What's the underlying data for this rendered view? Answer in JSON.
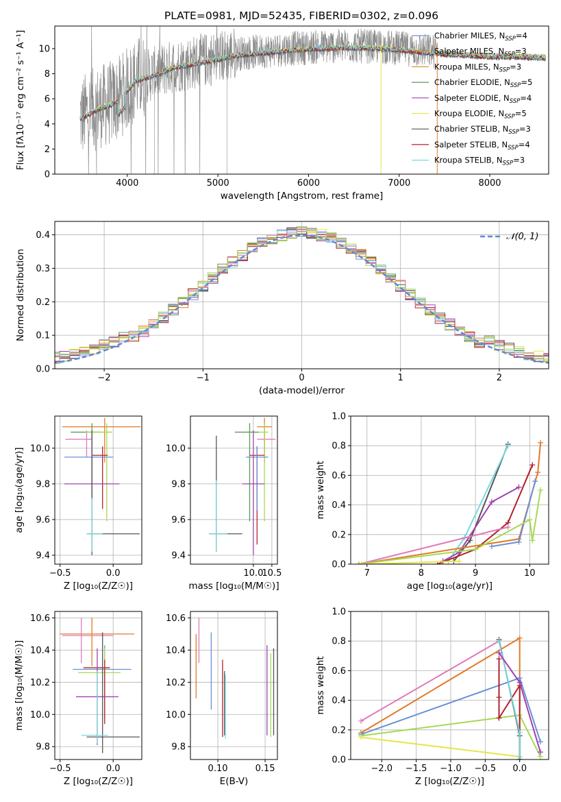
{
  "figure": {
    "suptitle": "PLATE=0981, MJD=52435, FIBERID=0302, z=0.096",
    "colors": {
      "Chabrier MILES": "#6a8fd6",
      "Salpeter MILES": "#e07a28",
      "Kroupa MILES": "#d49a32",
      "Chabrier ELODIE": "#5a9a5a",
      "Salpeter ELODIE": "#a040b0",
      "Kroupa ELODIE": "#e6e64a",
      "Chabrier STELIB": "#555555",
      "Salpeter STELIB": "#b0202a",
      "Kroupa STELIB": "#7ad8dc",
      "pink": "#e07ab8",
      "lime": "#a6d854",
      "data": "#888888",
      "gauss": "#5b8ad8"
    }
  },
  "chart_data": [
    {
      "id": "spectrum",
      "type": "line",
      "xlabel": "wavelength [Angstrom, rest frame]",
      "ylabel": "Flux [fλ10⁻¹⁷ erg cm⁻² s⁻¹ A⁻¹]",
      "xlim": [
        3200,
        8650
      ],
      "ylim": [
        0,
        11.8
      ],
      "xticks": [
        "4000",
        "5000",
        "6000",
        "7000",
        "8000"
      ],
      "yticks": [
        "0",
        "2",
        "4",
        "6",
        "8",
        "10"
      ],
      "legend_position": "right",
      "legend": [
        {
          "label": "Chabrier MILES, N",
          "sub": "SSP",
          "tail": "=4",
          "color": "#6a8fd6"
        },
        {
          "label": "Salpeter MILES, N",
          "sub": "SSP",
          "tail": "=3",
          "color": "#e07a28"
        },
        {
          "label": "Kroupa MILES, N",
          "sub": "SSP",
          "tail": "=3",
          "color": "#d49a32"
        },
        {
          "label": "Chabrier ELODIE, N",
          "sub": "SSP",
          "tail": "=5",
          "color": "#5a9a5a"
        },
        {
          "label": "Salpeter ELODIE, N",
          "sub": "SSP",
          "tail": "=4",
          "color": "#a040b0"
        },
        {
          "label": "Kroupa ELODIE, N",
          "sub": "SSP",
          "tail": "=5",
          "color": "#e6e64a"
        },
        {
          "label": "Chabrier STELIB, N",
          "sub": "SSP",
          "tail": "=3",
          "color": "#555555"
        },
        {
          "label": "Salpeter STELIB, N",
          "sub": "SSP",
          "tail": "=4",
          "color": "#b0202a"
        },
        {
          "label": "Kroupa STELIB, N",
          "sub": "SSP",
          "tail": "=3",
          "color": "#7ad8dc"
        }
      ],
      "continuum": {
        "x": [
          3500,
          3600,
          3700,
          3800,
          3900,
          4000,
          4100,
          4300,
          4500,
          4800,
          5000,
          5200,
          5500,
          5800,
          6000,
          6300,
          6600,
          6900,
          7200,
          7500,
          7800,
          8000,
          8300,
          8600
        ],
        "y": [
          4.6,
          5.0,
          5.4,
          5.6,
          6.0,
          6.8,
          7.6,
          8.0,
          8.6,
          9.0,
          9.3,
          9.6,
          9.8,
          10.0,
          10.1,
          10.2,
          10.2,
          10.1,
          9.9,
          9.7,
          9.6,
          9.5,
          9.5,
          9.4
        ]
      },
      "noise_cutoff_x": 7420,
      "vertical_spikes": [
        {
          "x": 6800,
          "color": "#e6e64a"
        },
        {
          "x": 7420,
          "color": "#e07a28"
        }
      ]
    },
    {
      "id": "residuals",
      "type": "histogram",
      "xlabel": "(data-model)/error",
      "ylabel": "Normed distribution",
      "xlim": [
        -2.5,
        2.5
      ],
      "ylim": [
        0,
        0.44
      ],
      "xticks": [
        "−2",
        "−1",
        "0",
        "1",
        "2"
      ],
      "yticks": [
        "0.0",
        "0.1",
        "0.2",
        "0.3",
        "0.4"
      ],
      "gauss_label": "𝒩(0, 1)",
      "bin_width": 0.1
    },
    {
      "id": "age_vs_Z",
      "type": "errorbar",
      "xlabel": "Z [log₁₀(Z/Z☉)]",
      "ylabel": "age  [log₁₀(age/yr)]",
      "xlim": [
        -0.55,
        0.27
      ],
      "ylim": [
        9.35,
        10.18
      ],
      "xticks": [
        "−0.5",
        "0.0"
      ],
      "yticks": [
        "9.4",
        "9.6",
        "9.8",
        "10.0"
      ],
      "points": [
        {
          "x": -0.08,
          "y": 10.12,
          "xerr": [
            0.4,
            0.34
          ],
          "yerr": [
            0.2,
            0.05
          ],
          "color": "#e07a28"
        },
        {
          "x": -0.2,
          "y": 10.09,
          "xerr": [
            0.2,
            0.1
          ],
          "yerr": [
            0.4,
            0.05
          ],
          "color": "#5a9a5a"
        },
        {
          "x": -0.25,
          "y": 10.05,
          "xerr": [
            0.2,
            0.05
          ],
          "yerr": [
            0.1,
            0.05
          ],
          "color": "#e07ab8"
        },
        {
          "x": -0.06,
          "y": 10.09,
          "xerr": [
            0.2,
            0.05
          ],
          "yerr": [
            0.5,
            0.05
          ],
          "color": "#a6d854"
        },
        {
          "x": -0.1,
          "y": 9.96,
          "xerr": [
            0.1,
            0.05
          ],
          "yerr": [
            0.3,
            0.05
          ],
          "color": "#b0202a"
        },
        {
          "x": -0.2,
          "y": 9.95,
          "xerr": [
            0.26,
            0.2
          ],
          "yerr": [
            0.42,
            0.06
          ],
          "color": "#6a8fd6"
        },
        {
          "x": -0.2,
          "y": 9.8,
          "xerr": [
            0.26,
            0.26
          ],
          "yerr": [
            0.37,
            0.3
          ],
          "color": "#a040b0"
        },
        {
          "x": -0.2,
          "y": 9.52,
          "xerr": [
            0.05,
            0.45
          ],
          "yerr": [
            0.12,
            0.58
          ],
          "color": "#555555"
        },
        {
          "x": -0.2,
          "y": 9.52,
          "xerr": [
            0.05,
            0.1
          ],
          "yerr": [
            0.1,
            0.2
          ],
          "color": "#7ad8dc"
        }
      ]
    },
    {
      "id": "age_vs_mass",
      "type": "errorbar",
      "xlabel": "mass [log₁₀(M/M☉)]",
      "ylabel": "",
      "xlim": [
        8.3,
        10.65
      ],
      "ylim": [
        9.35,
        10.18
      ],
      "xticks": [
        "10.0",
        "10.5"
      ],
      "yticks": [
        "9.4",
        "9.6",
        "9.8",
        "10.0"
      ],
      "points": [
        {
          "x": 10.3,
          "y": 10.12,
          "xerr": [
            0.2,
            0.2
          ],
          "yerr": [
            0.2,
            0.05
          ],
          "color": "#e07a28"
        },
        {
          "x": 9.9,
          "y": 10.09,
          "xerr": [
            0.4,
            0.25
          ],
          "yerr": [
            0.5,
            0.05
          ],
          "color": "#5a9a5a"
        },
        {
          "x": 10.3,
          "y": 10.05,
          "xerr": [
            0.2,
            0.3
          ],
          "yerr": [
            0.1,
            0.05
          ],
          "color": "#e07ab8"
        },
        {
          "x": 10.3,
          "y": 10.09,
          "xerr": [
            0.15,
            0.1
          ],
          "yerr": [
            0.5,
            0.05
          ],
          "color": "#a6d854"
        },
        {
          "x": 10.1,
          "y": 9.96,
          "xerr": [
            0.2,
            0.2
          ],
          "yerr": [
            0.5,
            0.05
          ],
          "color": "#b0202a"
        },
        {
          "x": 10.1,
          "y": 9.95,
          "xerr": [
            0.3,
            0.3
          ],
          "yerr": [
            0.3,
            0.06
          ],
          "color": "#6a8fd6"
        },
        {
          "x": 10.0,
          "y": 9.8,
          "xerr": [
            0.3,
            0.3
          ],
          "yerr": [
            0.4,
            0.3
          ],
          "color": "#a040b0"
        },
        {
          "x": 9.0,
          "y": 9.52,
          "xerr": [
            0.2,
            0.7
          ],
          "yerr": [
            0.1,
            0.55
          ],
          "color": "#555555"
        },
        {
          "x": 9.0,
          "y": 9.52,
          "xerr": [
            0.2,
            0.3
          ],
          "yerr": [
            0.1,
            0.3
          ],
          "color": "#7ad8dc"
        }
      ]
    },
    {
      "id": "mw_vs_age",
      "type": "line",
      "xlabel": "age  [log₁₀(age/yr)]",
      "ylabel": "mass weight",
      "xlim": [
        6.7,
        10.35
      ],
      "ylim": [
        0,
        1
      ],
      "xticks": [
        "7",
        "8",
        "9",
        "10"
      ],
      "yticks": [
        "0.0",
        "0.2",
        "0.4",
        "0.6",
        "0.8",
        "1.0"
      ],
      "series": [
        {
          "color": "#555555",
          "x": [
            8.6,
            8.9,
            9.6
          ],
          "y": [
            0.02,
            0.16,
            0.81
          ]
        },
        {
          "color": "#7ad8dc",
          "x": [
            8.5,
            8.8,
            9.6
          ],
          "y": [
            0.02,
            0.18,
            0.8
          ]
        },
        {
          "color": "#a040b0",
          "x": [
            8.4,
            8.7,
            9.3,
            9.8
          ],
          "y": [
            0.02,
            0.08,
            0.42,
            0.52
          ]
        },
        {
          "color": "#b0202a",
          "x": [
            8.3,
            9.0,
            9.6,
            10.05
          ],
          "y": [
            0.0,
            0.1,
            0.28,
            0.67
          ]
        },
        {
          "color": "#e07a28",
          "x": [
            6.85,
            9.8,
            10.15,
            10.2
          ],
          "y": [
            0.0,
            0.17,
            0.62,
            0.82
          ]
        },
        {
          "color": "#6a8fd6",
          "x": [
            9.3,
            9.8,
            10.1
          ],
          "y": [
            0.12,
            0.15,
            0.56
          ]
        },
        {
          "color": "#e07ab8",
          "x": [
            6.85,
            9.6
          ],
          "y": [
            0.0,
            0.25
          ]
        },
        {
          "color": "#a6d854",
          "x": [
            6.85,
            9.0,
            10.0,
            10.05,
            10.2
          ],
          "y": [
            0.0,
            0.1,
            0.3,
            0.16,
            0.5
          ]
        },
        {
          "color": "#e6e64a",
          "x": [
            6.9,
            8.7
          ],
          "y": [
            0.0,
            0.02
          ]
        }
      ]
    },
    {
      "id": "mass_vs_Z",
      "type": "errorbar",
      "xlabel": "Z [log₁₀(Z/Z☉)]",
      "ylabel": "mass [log₁₀(M/M☉)]",
      "xlim": [
        -0.55,
        0.27
      ],
      "ylim": [
        9.72,
        10.64
      ],
      "xticks": [
        "−0.5",
        "0.0"
      ],
      "yticks": [
        "9.8",
        "10.0",
        "10.2",
        "10.4",
        "10.6"
      ],
      "points": [
        {
          "x": -0.2,
          "y": 10.5,
          "xerr": [
            0.3,
            0.4
          ],
          "yerr": [
            0.2,
            0.1
          ],
          "color": "#e07a28"
        },
        {
          "x": -0.3,
          "y": 10.49,
          "xerr": [
            0.18,
            0.3
          ],
          "yerr": [
            0.17,
            0.11
          ],
          "color": "#e07ab8"
        },
        {
          "x": -0.08,
          "y": 10.28,
          "xerr": [
            0.3,
            0.25
          ],
          "yerr": [
            0.3,
            0.15
          ],
          "color": "#6a8fd6"
        },
        {
          "x": -0.08,
          "y": 10.26,
          "xerr": [
            0.25,
            0.15
          ],
          "yerr": [
            0.3,
            0.15
          ],
          "color": "#a6d854"
        },
        {
          "x": -0.08,
          "y": 10.29,
          "xerr": [
            0.2,
            0.05
          ],
          "yerr": [
            0.35,
            0.05
          ],
          "color": "#b0202a"
        },
        {
          "x": -0.15,
          "y": 10.11,
          "xerr": [
            0.2,
            0.2
          ],
          "yerr": [
            0.3,
            0.3
          ],
          "color": "#a040b0"
        },
        {
          "x": -0.1,
          "y": 9.86,
          "xerr": [
            0.15,
            0.35
          ],
          "yerr": [
            0.1,
            0.65
          ],
          "color": "#555555"
        },
        {
          "x": -0.15,
          "y": 9.87,
          "xerr": [
            0.15,
            0.1
          ],
          "yerr": [
            0.05,
            0.4
          ],
          "color": "#7ad8dc"
        }
      ]
    },
    {
      "id": "mass_vs_ebv",
      "type": "errorbar",
      "xlabel": "E(B-V)",
      "ylabel": "",
      "xlim": [
        0.071,
        0.163
      ],
      "ylim": [
        9.72,
        10.64
      ],
      "xticks": [
        "0.10",
        "0.15"
      ],
      "yticks": [
        "9.8",
        "10.0",
        "10.2",
        "10.4",
        "10.6"
      ],
      "points": [
        {
          "x": 0.077,
          "y": 10.3,
          "yerr": [
            0.2,
            0.2
          ],
          "color": "#e07a28"
        },
        {
          "x": 0.08,
          "y": 10.46,
          "yerr": [
            0.14,
            0.14
          ],
          "color": "#e07ab8"
        },
        {
          "x": 0.093,
          "y": 10.27,
          "yerr": [
            0.24,
            0.24
          ],
          "color": "#6a8fd6"
        },
        {
          "x": 0.105,
          "y": 10.1,
          "yerr": [
            0.24,
            0.24
          ],
          "color": "#b0202a"
        },
        {
          "x": 0.107,
          "y": 10.07,
          "yerr": [
            0.2,
            0.2
          ],
          "color": "#555555"
        },
        {
          "x": 0.108,
          "y": 10.05,
          "yerr": [
            0.2,
            0.2
          ],
          "color": "#7ad8dc"
        },
        {
          "x": 0.152,
          "y": 10.15,
          "yerr": [
            0.28,
            0.28
          ],
          "color": "#a040b0"
        },
        {
          "x": 0.156,
          "y": 10.12,
          "yerr": [
            0.26,
            0.26
          ],
          "color": "#a6d854"
        },
        {
          "x": 0.159,
          "y": 10.14,
          "yerr": [
            0.27,
            0.27
          ],
          "color": "#555555"
        }
      ]
    },
    {
      "id": "mw_vs_Z",
      "type": "line",
      "xlabel": "Z [log₁₀(Z/Z☉)]",
      "ylabel": "mass weight",
      "xlim": [
        -2.45,
        0.42
      ],
      "ylim": [
        0,
        1
      ],
      "xticks": [
        "−2.0",
        "−1.5",
        "−1.0",
        "−0.5",
        "0.0"
      ],
      "yticks": [
        "0.0",
        "0.2",
        "0.4",
        "0.6",
        "0.8",
        "1.0"
      ],
      "series": [
        {
          "color": "#e07ab8",
          "x": [
            -2.3,
            -0.3
          ],
          "y": [
            0.26,
            0.8
          ]
        },
        {
          "color": "#e07a28",
          "x": [
            -2.3,
            0.0,
            0.0
          ],
          "y": [
            0.18,
            0.82,
            0.0
          ]
        },
        {
          "color": "#6a8fd6",
          "x": [
            -2.3,
            0.0,
            0.3
          ],
          "y": [
            0.17,
            0.55,
            0.12
          ]
        },
        {
          "color": "#a6d854",
          "x": [
            -2.3,
            0.0,
            0.3
          ],
          "y": [
            0.16,
            0.3,
            0.02
          ]
        },
        {
          "color": "#e6e64a",
          "x": [
            -2.3,
            0.0
          ],
          "y": [
            0.15,
            0.02
          ]
        },
        {
          "color": "#b0202a",
          "x": [
            -0.3,
            -0.3,
            -0.3,
            0.0,
            0.0
          ],
          "y": [
            0.68,
            0.42,
            0.28,
            0.5,
            0.0
          ]
        },
        {
          "color": "#555555",
          "x": [
            -0.3,
            0.0,
            0.0
          ],
          "y": [
            0.81,
            0.16,
            0.0
          ]
        },
        {
          "color": "#7ad8dc",
          "x": [
            -0.3,
            0.0,
            0.0
          ],
          "y": [
            0.8,
            0.18,
            0.02
          ]
        },
        {
          "color": "#a040b0",
          "x": [
            -0.3,
            0.0,
            0.3
          ],
          "y": [
            0.72,
            0.52,
            0.05
          ]
        }
      ]
    }
  ]
}
